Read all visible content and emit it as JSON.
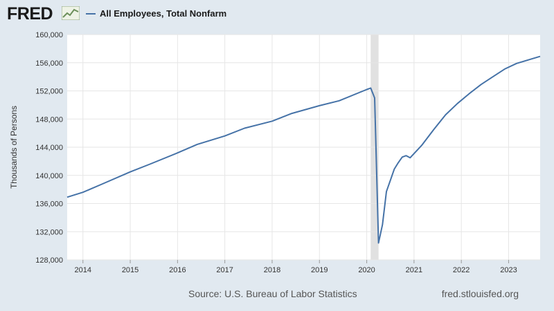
{
  "header": {
    "logo_text": "FRED",
    "logo_icon": "line-chart-icon",
    "legend_label": "All Employees, Total Nonfarm",
    "legend_color": "#4572a7"
  },
  "footer": {
    "source": "Source: U.S. Bureau of Labor Statistics",
    "site": "fred.stlouisfed.org"
  },
  "chart_data": {
    "type": "line",
    "ylabel": "Thousands of Persons",
    "ylim": [
      128000,
      160000
    ],
    "xlim": [
      "2013-09",
      "2023-09"
    ],
    "y_ticks": [
      "128,000",
      "132,000",
      "136,000",
      "140,000",
      "144,000",
      "148,000",
      "152,000",
      "156,000",
      "160,000"
    ],
    "x_ticks": [
      "2014",
      "2015",
      "2016",
      "2017",
      "2018",
      "2019",
      "2020",
      "2021",
      "2022",
      "2023"
    ],
    "grid": true,
    "recession_shading": [
      "2020-02",
      "2020-04"
    ],
    "series": [
      {
        "name": "All Employees, Total Nonfarm",
        "color": "#4572a7",
        "x": [
          "2013-09",
          "2014-01",
          "2014-06",
          "2015-01",
          "2015-06",
          "2016-01",
          "2016-06",
          "2017-01",
          "2017-06",
          "2018-01",
          "2018-06",
          "2019-01",
          "2019-06",
          "2020-01",
          "2020-02",
          "2020-03",
          "2020-04",
          "2020-05",
          "2020-06",
          "2020-07",
          "2020-08",
          "2020-09",
          "2020-10",
          "2020-11",
          "2020-12",
          "2021-01",
          "2021-03",
          "2021-06",
          "2021-09",
          "2021-12",
          "2022-03",
          "2022-06",
          "2022-09",
          "2022-12",
          "2023-03",
          "2023-06",
          "2023-09"
        ],
        "y": [
          136900,
          137600,
          138800,
          140500,
          141600,
          143200,
          144400,
          145600,
          146700,
          147700,
          148800,
          149900,
          150600,
          152200,
          152400,
          151000,
          130400,
          133000,
          137700,
          139300,
          140900,
          141800,
          142600,
          142800,
          142500,
          143100,
          144300,
          146500,
          148600,
          150200,
          151600,
          152900,
          154000,
          155100,
          155900,
          156400,
          156900
        ]
      }
    ]
  }
}
